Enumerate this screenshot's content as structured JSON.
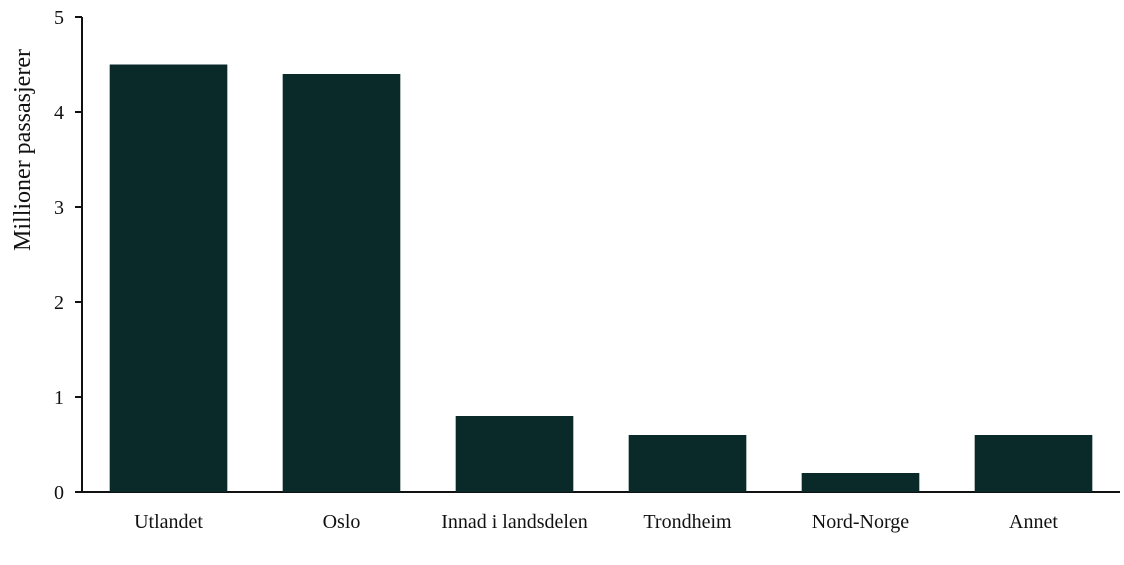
{
  "chart_data": {
    "type": "bar",
    "ylabel": "Millioner passasjerer",
    "categories": [
      "Utlandet",
      "Oslo",
      "Innad i landsdelen",
      "Trondheim",
      "Nord-Norge",
      "Annet"
    ],
    "values": [
      4.5,
      4.4,
      0.8,
      0.6,
      0.2,
      0.6
    ],
    "color": "#0a2a2a",
    "ylim": [
      0,
      5
    ],
    "yticks": [
      0,
      1,
      2,
      3,
      4,
      5
    ],
    "grid": false
  }
}
